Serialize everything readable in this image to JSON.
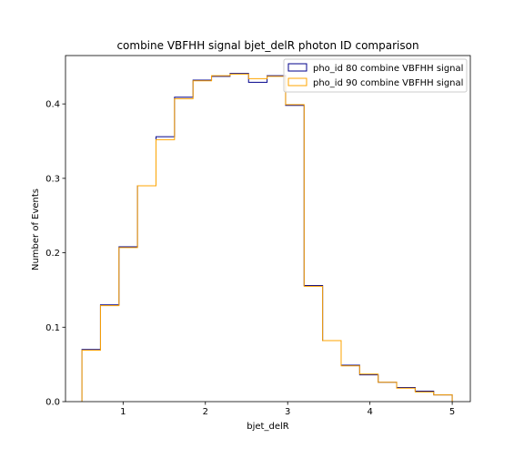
{
  "chart_data": {
    "type": "histogram-step",
    "title": "combine VBFHH signal bjet_delR photon ID comparison",
    "xlabel": "bjet_delR",
    "ylabel": "Number of Events",
    "xlim": [
      0.3,
      5.22
    ],
    "ylim": [
      0,
      0.465
    ],
    "xticks": [
      1,
      2,
      3,
      4,
      5
    ],
    "yticks": [
      0.0,
      0.1,
      0.2,
      0.3,
      0.4
    ],
    "ytick_labels": [
      "0.0",
      "0.1",
      "0.2",
      "0.3",
      "0.4"
    ],
    "grid": false,
    "legend_position": "upper right",
    "bin_edges": [
      0.5,
      0.725,
      0.95,
      1.175,
      1.4,
      1.625,
      1.85,
      2.075,
      2.3,
      2.525,
      2.75,
      2.975,
      3.2,
      3.425,
      3.65,
      3.875,
      4.1,
      4.325,
      4.55,
      4.775,
      5.0
    ],
    "series": [
      {
        "name": "pho_id 80 combine VBFHH signal",
        "color": "#00008b",
        "values": [
          0.07,
          0.13,
          0.208,
          0.29,
          0.356,
          0.409,
          0.432,
          0.437,
          0.441,
          0.429,
          0.438,
          0.398,
          0.156,
          0.082,
          0.049,
          0.036,
          0.026,
          0.019,
          0.014,
          0.009
        ]
      },
      {
        "name": "pho_id 90 combine VBFHH signal",
        "color": "#ffa500",
        "values": [
          0.069,
          0.129,
          0.207,
          0.29,
          0.352,
          0.407,
          0.431,
          0.438,
          0.44,
          0.434,
          0.437,
          0.399,
          0.155,
          0.082,
          0.048,
          0.037,
          0.026,
          0.018,
          0.013,
          0.009
        ]
      }
    ]
  }
}
